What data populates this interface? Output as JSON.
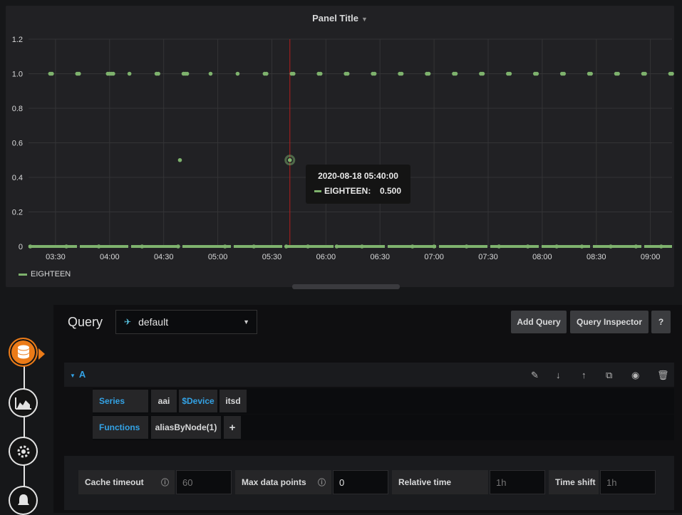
{
  "panel": {
    "title": "Panel Title",
    "legend_label": "EIGHTEEN"
  },
  "tooltip": {
    "time": "2020-08-18 05:40:00",
    "series": "EIGHTEEN:",
    "value": "0.500"
  },
  "chart_data": {
    "type": "scatter",
    "title": "Panel Title",
    "xlabel": "",
    "ylabel": "",
    "x_ticks": [
      "03:30",
      "04:00",
      "04:30",
      "05:00",
      "05:30",
      "06:00",
      "06:30",
      "07:00",
      "07:30",
      "08:00",
      "08:30",
      "09:00"
    ],
    "y_ticks": [
      "0",
      "0.2",
      "0.4",
      "0.6",
      "0.8",
      "1.0",
      "1.2"
    ],
    "ylim": [
      0,
      1.2
    ],
    "x_range": [
      "03:15",
      "09:12"
    ],
    "grid": true,
    "legend": "bottom-left",
    "series_color": "#7eb26d",
    "crosshair_time": "05:40",
    "series": [
      {
        "name": "EIGHTEEN",
        "points": [
          [
            "03:27",
            1
          ],
          [
            "03:28",
            1
          ],
          [
            "03:42",
            1
          ],
          [
            "03:43",
            1
          ],
          [
            "03:59",
            1
          ],
          [
            "04:00",
            1
          ],
          [
            "04:01",
            1
          ],
          [
            "04:02",
            1
          ],
          [
            "04:11",
            1
          ],
          [
            "04:26",
            1
          ],
          [
            "04:27",
            1
          ],
          [
            "04:41",
            1
          ],
          [
            "04:42",
            1
          ],
          [
            "04:43",
            1
          ],
          [
            "04:56",
            1
          ],
          [
            "05:11",
            1
          ],
          [
            "05:26",
            1
          ],
          [
            "05:27",
            1
          ],
          [
            "05:41",
            1
          ],
          [
            "05:42",
            1
          ],
          [
            "05:56",
            1
          ],
          [
            "05:57",
            1
          ],
          [
            "06:11",
            1
          ],
          [
            "06:12",
            1
          ],
          [
            "06:26",
            1
          ],
          [
            "06:27",
            1
          ],
          [
            "06:41",
            1
          ],
          [
            "06:42",
            1
          ],
          [
            "06:56",
            1
          ],
          [
            "06:57",
            1
          ],
          [
            "07:11",
            1
          ],
          [
            "07:12",
            1
          ],
          [
            "07:26",
            1
          ],
          [
            "07:27",
            1
          ],
          [
            "07:41",
            1
          ],
          [
            "07:42",
            1
          ],
          [
            "07:56",
            1
          ],
          [
            "07:57",
            1
          ],
          [
            "08:11",
            1
          ],
          [
            "08:12",
            1
          ],
          [
            "08:26",
            1
          ],
          [
            "08:27",
            1
          ],
          [
            "08:41",
            1
          ],
          [
            "08:42",
            1
          ],
          [
            "08:56",
            1
          ],
          [
            "08:57",
            1
          ],
          [
            "09:11",
            1
          ],
          [
            "09:12",
            1
          ],
          [
            "03:16",
            0
          ],
          [
            "03:36",
            0
          ],
          [
            "03:54",
            0
          ],
          [
            "04:18",
            0
          ],
          [
            "04:38",
            0
          ],
          [
            "05:04",
            0
          ],
          [
            "05:20",
            0
          ],
          [
            "05:38",
            0
          ],
          [
            "05:50",
            0
          ],
          [
            "06:06",
            0
          ],
          [
            "06:20",
            0
          ],
          [
            "06:48",
            0
          ],
          [
            "07:00",
            0
          ],
          [
            "07:18",
            0
          ],
          [
            "07:36",
            0
          ],
          [
            "07:52",
            0
          ],
          [
            "08:08",
            0
          ],
          [
            "08:22",
            0
          ],
          [
            "08:38",
            0
          ],
          [
            "08:52",
            0
          ],
          [
            "09:06",
            0
          ]
        ]
      }
    ]
  },
  "editor": {
    "query_label": "Query",
    "datasource": "default",
    "add_query_label": "Add Query",
    "inspector_label": "Query Inspector",
    "help_label": "?",
    "query_ref": "A",
    "series_key": "Series",
    "series_segments": [
      "aai",
      "$Device",
      "itsd"
    ],
    "functions_key": "Functions",
    "function_value": "aliasByNode(1)",
    "add_function_label": "+",
    "options": {
      "cache_timeout_label": "Cache timeout",
      "cache_timeout_placeholder": "60",
      "max_points_label": "Max data points",
      "max_points_value": "0",
      "relative_time_label": "Relative time",
      "relative_time_placeholder": "1h",
      "time_shift_label": "Time shift",
      "time_shift_placeholder": "1h"
    }
  },
  "icons": {
    "sidebar": [
      "database-icon",
      "chart-area-icon",
      "gear-icon",
      "bell-icon"
    ],
    "row_actions": [
      "pencil-icon",
      "arrow-down-icon",
      "arrow-up-icon",
      "duplicate-icon",
      "eye-icon",
      "trash-icon"
    ]
  },
  "colors": {
    "accent_orange": "#eb7b18",
    "series_green": "#7eb26d",
    "link_blue": "#33a2e5",
    "crosshair_red": "#b61d1d"
  }
}
